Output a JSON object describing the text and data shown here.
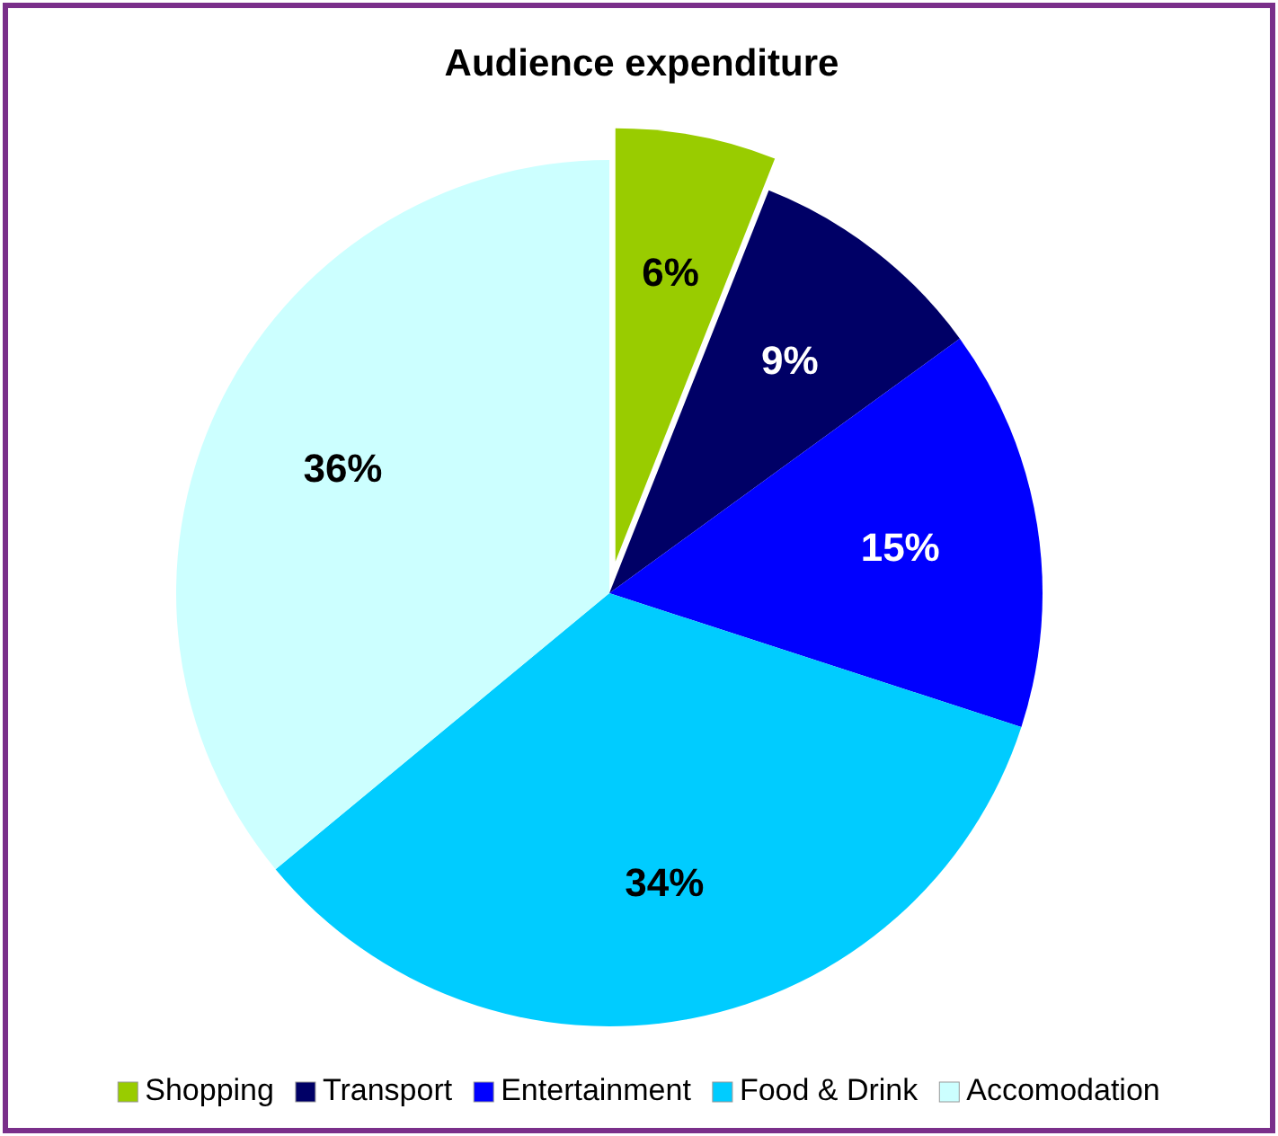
{
  "chart_data": {
    "type": "pie",
    "title": "Audience expenditure",
    "categories": [
      "Shopping",
      "Transport",
      "Entertainment",
      "Food & Drink",
      "Accomodation"
    ],
    "values": [
      6,
      9,
      15,
      34,
      36
    ],
    "colors": [
      "#99cc00",
      "#000066",
      "#0000ff",
      "#00ccff",
      "#ccffff"
    ],
    "value_labels": [
      "6%",
      "9%",
      "15%",
      "34%",
      "36%"
    ],
    "legend": "bottom"
  }
}
